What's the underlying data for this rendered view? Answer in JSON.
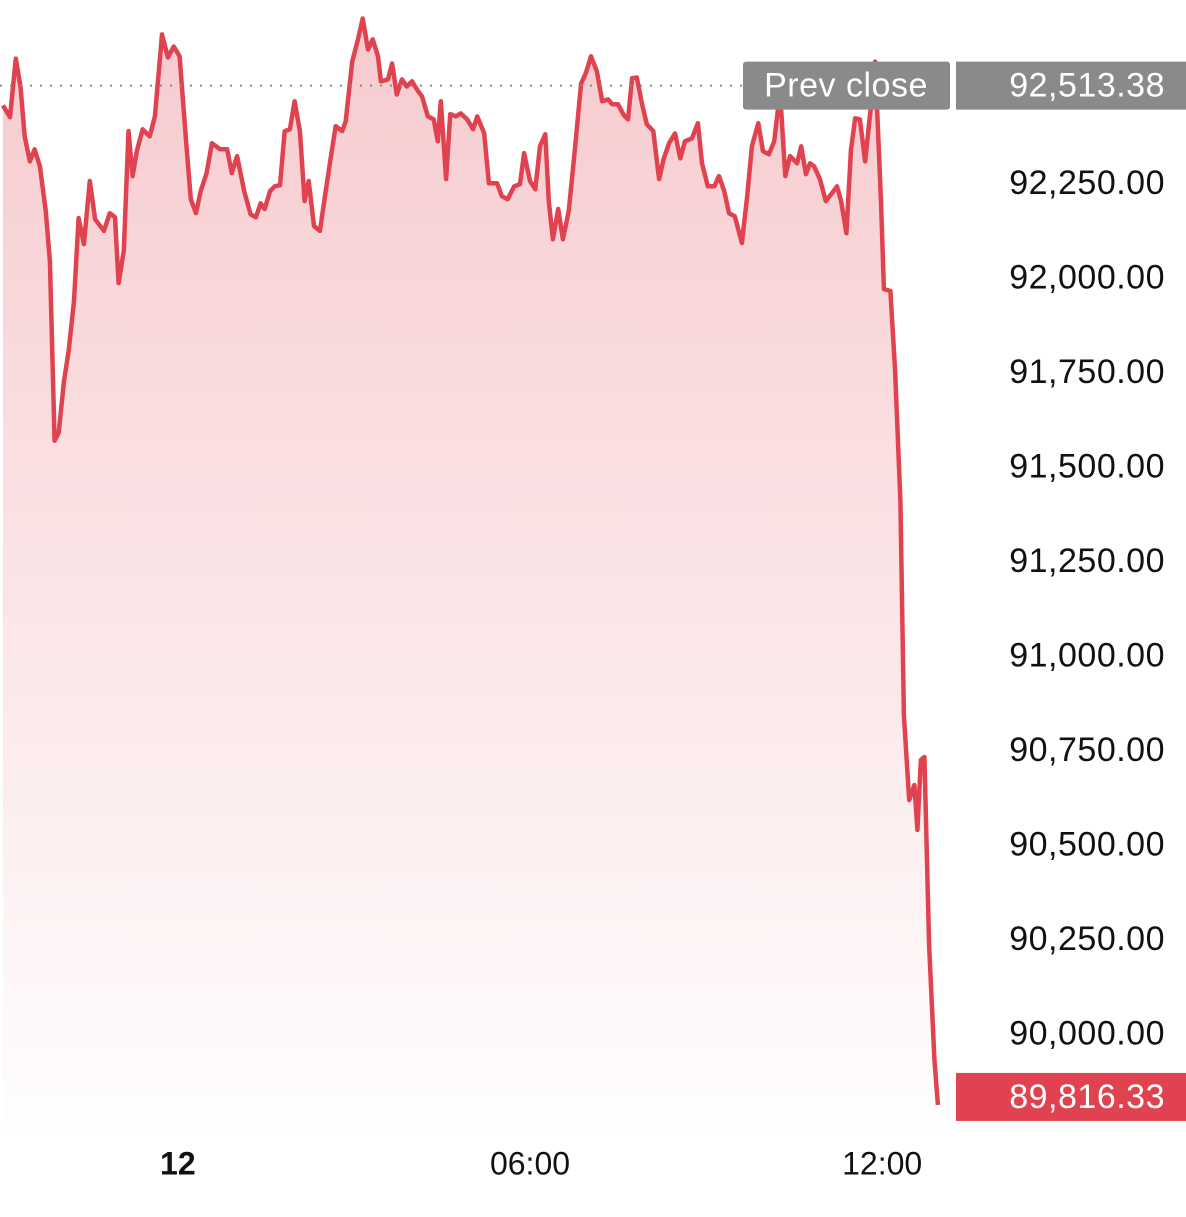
{
  "chart_data": {
    "type": "line",
    "fill": true,
    "grid": false,
    "xlim": [
      -3.03,
      13.19
    ],
    "ylim": [
      89750,
      92740
    ],
    "xticks": [
      {
        "value": 0,
        "label": "12"
      },
      {
        "value": 6,
        "label": "06:00"
      },
      {
        "value": 12,
        "label": "12:00"
      }
    ],
    "yticks": [
      {
        "value": 90000,
        "label": "90,000.00"
      },
      {
        "value": 90250,
        "label": "90,250.00"
      },
      {
        "value": 90500,
        "label": "90,500.00"
      },
      {
        "value": 90750,
        "label": "90,750.00"
      },
      {
        "value": 91000,
        "label": "91,000.00"
      },
      {
        "value": 91250,
        "label": "91,250.00"
      },
      {
        "value": 91500,
        "label": "91,500.00"
      },
      {
        "value": 91750,
        "label": "91,750.00"
      },
      {
        "value": 92000,
        "label": "92,000.00"
      },
      {
        "value": 92250,
        "label": "92,250.00"
      }
    ],
    "reference_line": {
      "label": "Prev close",
      "value": 92513.38,
      "value_label": "92,513.38",
      "color": "#8a8a8a"
    },
    "last_value_label": "89,816.33",
    "x": [
      -2.98,
      -2.86,
      -2.76,
      -2.68,
      -2.61,
      -2.52,
      -2.44,
      -2.35,
      -2.25,
      -2.18,
      -2.1,
      -2.03,
      -1.94,
      -1.86,
      -1.77,
      -1.69,
      -1.6,
      -1.5,
      -1.41,
      -1.26,
      -1.16,
      -1.07,
      -1.01,
      -0.92,
      -0.84,
      -0.77,
      -0.7,
      -0.6,
      -0.48,
      -0.39,
      -0.27,
      -0.17,
      -0.07,
      0.03,
      0.14,
      0.22,
      0.31,
      0.39,
      0.49,
      0.58,
      0.72,
      0.84,
      0.92,
      1.01,
      1.13,
      1.24,
      1.33,
      1.41,
      1.48,
      1.57,
      1.65,
      1.74,
      1.82,
      1.91,
      1.99,
      2.08,
      2.16,
      2.23,
      2.32,
      2.42,
      2.52,
      2.61,
      2.69,
      2.8,
      2.86,
      2.97,
      3.07,
      3.15,
      3.24,
      3.32,
      3.41,
      3.46,
      3.58,
      3.65,
      3.73,
      3.82,
      3.9,
      3.99,
      4.07,
      4.16,
      4.26,
      4.36,
      4.43,
      4.48,
      4.57,
      4.64,
      4.74,
      4.82,
      4.93,
      5.03,
      5.1,
      5.22,
      5.3,
      5.44,
      5.52,
      5.62,
      5.73,
      5.83,
      5.9,
      6.0,
      6.09,
      6.17,
      6.26,
      6.32,
      6.39,
      6.48,
      6.56,
      6.66,
      6.77,
      6.87,
      6.95,
      7.04,
      7.14,
      7.23,
      7.33,
      7.4,
      7.5,
      7.6,
      7.67,
      7.74,
      7.82,
      7.91,
      7.99,
      8.1,
      8.2,
      8.28,
      8.37,
      8.47,
      8.56,
      8.64,
      8.76,
      8.86,
      8.93,
      9.03,
      9.14,
      9.22,
      9.31,
      9.39,
      9.49,
      9.61,
      9.7,
      9.78,
      9.89,
      9.97,
      10.07,
      10.16,
      10.26,
      10.35,
      10.43,
      10.55,
      10.62,
      10.7,
      10.77,
      10.84,
      10.94,
      11.04,
      11.13,
      11.23,
      11.3,
      11.39,
      11.47,
      11.54,
      11.62,
      11.71,
      11.8,
      11.88,
      11.98,
      12.03,
      12.14,
      12.22,
      12.31,
      12.37,
      12.46,
      12.55,
      12.6,
      12.66,
      12.72,
      12.8,
      12.89,
      12.95
    ],
    "series": [
      {
        "color": "#e0434f",
        "values": [
          92461,
          92430,
          92585,
          92511,
          92379,
          92313,
          92345,
          92300,
          92181,
          92049,
          91574,
          91595,
          91732,
          91812,
          91944,
          92163,
          92094,
          92261,
          92160,
          92129,
          92176,
          92165,
          91991,
          92076,
          92393,
          92274,
          92340,
          92398,
          92379,
          92432,
          92649,
          92588,
          92617,
          92591,
          92366,
          92213,
          92176,
          92234,
          92282,
          92361,
          92345,
          92345,
          92282,
          92327,
          92234,
          92173,
          92165,
          92202,
          92187,
          92234,
          92247,
          92250,
          92393,
          92398,
          92472,
          92393,
          92208,
          92261,
          92142,
          92129,
          92234,
          92327,
          92406,
          92393,
          92419,
          92577,
          92636,
          92691,
          92609,
          92636,
          92591,
          92525,
          92530,
          92572,
          92490,
          92530,
          92511,
          92525,
          92504,
          92485,
          92432,
          92424,
          92366,
          92472,
          92266,
          92438,
          92432,
          92440,
          92424,
          92398,
          92432,
          92387,
          92255,
          92255,
          92221,
          92213,
          92247,
          92253,
          92335,
          92261,
          92239,
          92353,
          92385,
          92208,
          92107,
          92187,
          92107,
          92181,
          92353,
          92519,
          92546,
          92591,
          92551,
          92472,
          92477,
          92464,
          92464,
          92435,
          92424,
          92533,
          92535,
          92464,
          92411,
          92393,
          92266,
          92321,
          92361,
          92387,
          92321,
          92366,
          92374,
          92414,
          92308,
          92247,
          92247,
          92274,
          92234,
          92176,
          92168,
          92097,
          92221,
          92353,
          92414,
          92340,
          92332,
          92366,
          92498,
          92274,
          92327,
          92308,
          92353,
          92279,
          92308,
          92300,
          92266,
          92208,
          92226,
          92247,
          92208,
          92123,
          92345,
          92427,
          92424,
          92313,
          92445,
          92577,
          92208,
          91975,
          91970,
          91759,
          91415,
          90848,
          90623,
          90663,
          90544,
          90729,
          90737,
          90240,
          89937,
          89816.33
        ]
      }
    ]
  }
}
